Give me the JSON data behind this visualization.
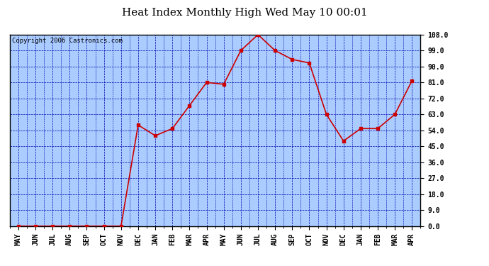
{
  "title": "Heat Index Monthly High Wed May 10 00:01",
  "copyright": "Copyright 2006 Castronics.com",
  "months": [
    "MAY",
    "JUN",
    "JUL",
    "AUG",
    "SEP",
    "OCT",
    "NOV",
    "DEC",
    "JAN",
    "FEB",
    "MAR",
    "APR",
    "MAY",
    "JUN",
    "JUL",
    "AUG",
    "SEP",
    "OCT",
    "NOV",
    "DEC",
    "JAN",
    "FEB",
    "MAR",
    "APR"
  ],
  "values": [
    0,
    0,
    0,
    0,
    0,
    0,
    0,
    57,
    51,
    55,
    68,
    81,
    80,
    99,
    108,
    99,
    94,
    92,
    63,
    48,
    55,
    55,
    63,
    82
  ],
  "ylim": [
    0,
    108
  ],
  "yticks": [
    0,
    9,
    18,
    27,
    36,
    45,
    54,
    63,
    72,
    81,
    90,
    99,
    108
  ],
  "line_color": "#cc0000",
  "marker": "s",
  "marker_size": 2.5,
  "bg_color": "#aaccff",
  "grid_color": "#0000aa",
  "border_color": "#000000",
  "title_fontsize": 11,
  "tick_fontsize": 7,
  "copyright_fontsize": 6.5
}
